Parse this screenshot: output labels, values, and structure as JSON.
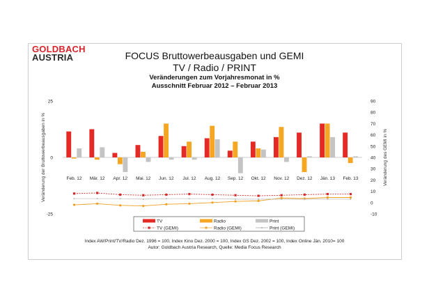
{
  "logo": {
    "line1": "GOLDBACH",
    "line2": "AUSTRIA"
  },
  "title": {
    "line1": "FOCUS Bruttowerbeausgaben und GEMI",
    "line2": "TV / Radio / PRINT",
    "line3": "Veränderungen zum Vorjahresmonat in %",
    "line4": "Ausschnitt  Februar 2012 – Februar 2013"
  },
  "footnote": {
    "line1": "Index AW/Print/TV/Radio Dez. 1996 = 100, Index Kino Dez. 2000 = 100, Index GS Dez. 2002 = 100, Index Online Jän. 2010= 100",
    "line2": "Autor: Goldbach Austria Research, Quelle: Media Focus Research"
  },
  "colors": {
    "tv": "#e52a25",
    "radio": "#f5a623",
    "print": "#c4c4c4",
    "tv_gemi": "#d42a2a",
    "radio_gemi": "#f0a020",
    "print_gemi": "#aaaaaa"
  },
  "chart_data": {
    "type": "bar",
    "categories": [
      "Feb. 12",
      "Mär. 12",
      "Apr. 12",
      "Mai. 12",
      "Jun. 12",
      "Jul. 12",
      "Aug. 12",
      "Sep. 12",
      "Okt. 12",
      "Nov. 12",
      "Dez. 12",
      "Jän. 13",
      "Feb. 13"
    ],
    "ylabel": "Veränderung der Bruttowerbeausgaben in %",
    "y2label": "Veränderung des GEMI in %",
    "ylim": [
      -25,
      25
    ],
    "yticks": [
      "25",
      "0",
      "-25"
    ],
    "y2lim": [
      -10,
      90
    ],
    "y2ticks": [
      "90",
      "80",
      "70",
      "60",
      "50",
      "40",
      "30",
      "20",
      "10",
      "0",
      "-10"
    ],
    "series": [
      {
        "name": "TV",
        "axis": "left",
        "kind": "bar",
        "values": [
          11.5,
          12.5,
          2,
          5.5,
          9.5,
          5,
          8.5,
          3,
          7,
          9,
          11,
          15,
          11
        ]
      },
      {
        "name": "Radio",
        "axis": "left",
        "kind": "bar",
        "values": [
          -0.5,
          -1,
          -3,
          2.5,
          15,
          7,
          14,
          7,
          4,
          13.5,
          -6.5,
          15,
          -2.5
        ]
      },
      {
        "name": "Print",
        "axis": "left",
        "kind": "bar",
        "values": [
          4,
          4.5,
          -6.5,
          -2,
          -1,
          -1,
          8,
          -7,
          3.5,
          -2,
          0.5,
          9,
          0.5
        ]
      },
      {
        "name": "TV (GEMI)",
        "axis": "right",
        "kind": "line",
        "values": [
          8,
          8.5,
          7,
          6.5,
          7,
          7.5,
          7,
          6.5,
          6,
          6.5,
          7,
          7.5,
          7.5
        ]
      },
      {
        "name": "Radio (GEMI)",
        "axis": "right",
        "kind": "line",
        "values": [
          -2,
          -1,
          -2.5,
          -3,
          -1.5,
          -1,
          0,
          1,
          1.5,
          4,
          3.5,
          4.5,
          4.5
        ]
      },
      {
        "name": "Print (GEMI)",
        "axis": "right",
        "kind": "line",
        "values": [
          3.5,
          3.5,
          3.5,
          3,
          3.5,
          3.5,
          3.5,
          3,
          3,
          3,
          3,
          3,
          3
        ]
      }
    ],
    "legend_position": "bottom"
  }
}
